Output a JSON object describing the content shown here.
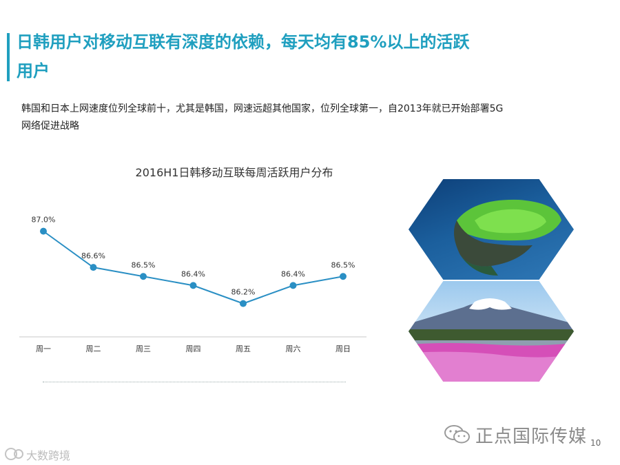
{
  "header": {
    "title": "日韩用户对移动互联有深度的依赖，每天均有85%以上的活跃用户",
    "subtitle": "韩国和日本上网速度位列全球前十，尤其是韩国，网速远超其他国家，位列全球第一，自2013年就已开始部署5G网络促进战略"
  },
  "chart_data": {
    "type": "line",
    "title": "2016H1日韩移动互联每周活跃用户分布",
    "categories": [
      "周一",
      "周二",
      "周三",
      "周四",
      "周五",
      "周六",
      "周日"
    ],
    "series": [
      {
        "values": [
          87.0,
          86.6,
          86.5,
          86.4,
          86.2,
          86.4,
          86.5
        ]
      }
    ],
    "data_labels": [
      "87.0%",
      "86.6%",
      "86.5%",
      "86.4%",
      "86.2%",
      "86.4%",
      "86.5%"
    ],
    "ylim": [
      85.9,
      87.5
    ],
    "grid": false,
    "legend": "none",
    "color": "#2a8fc4"
  },
  "images": {
    "top": "crater-island-photo",
    "bottom": "mount-fuji-pink-flowers-photo"
  },
  "footer": {
    "logo_icon": "wechat-icon",
    "logo_text": "正点国际传媒",
    "page_number": "10"
  },
  "watermark": {
    "icon": "brand-mark-icon",
    "text": "大数跨境"
  }
}
